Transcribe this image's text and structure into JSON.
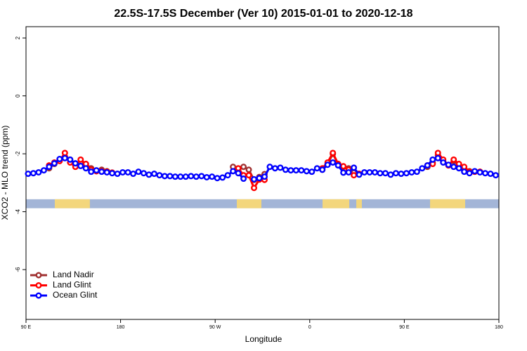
{
  "chart_data": {
    "type": "line",
    "title": "22.5S-17.5S December (Ver 10)   2015-01-01 to 2020-12-18",
    "x_label": "Longitude",
    "y_label": "XCO2 - MLO trend (ppm)",
    "xlim": [
      90,
      540
    ],
    "ylim": [
      -7.72,
      2.39
    ],
    "xticks": [
      {
        "value": 90,
        "label": "90 E"
      },
      {
        "value": 180,
        "label": "180"
      },
      {
        "value": 270,
        "label": "90 W"
      },
      {
        "value": 360,
        "label": "0"
      },
      {
        "value": 450,
        "label": "90 E"
      },
      {
        "value": 540,
        "label": "180"
      }
    ],
    "yticks": [
      -6,
      -4,
      -2,
      0,
      2
    ],
    "legend": "bottom-left",
    "surface_band": {
      "ylim": [
        -3.88,
        -3.57
      ],
      "ocean_color": "#a3b5d7",
      "land_color": "#f3d67c",
      "land": [
        [
          117.4,
          150.8
        ],
        [
          290.6,
          314
        ],
        [
          372.2,
          397.6
        ],
        [
          404.3,
          409.6
        ],
        [
          474.5,
          507.9
        ]
      ]
    },
    "x": [
      92,
      97,
      102,
      107,
      112,
      117,
      122,
      127,
      132,
      137,
      142,
      147,
      152,
      157,
      162,
      167,
      172,
      177,
      182,
      187,
      192,
      197,
      202,
      207,
      212,
      217,
      222,
      227,
      232,
      237,
      242,
      247,
      252,
      257,
      262,
      267,
      272,
      277,
      282,
      287,
      292,
      297,
      302,
      307,
      312,
      317,
      322,
      327,
      332,
      337,
      342,
      347,
      352,
      357,
      362,
      367,
      372,
      377,
      382,
      387,
      392,
      397,
      402,
      407,
      412,
      417,
      422,
      427,
      432,
      437,
      442,
      447,
      452,
      457,
      462,
      467,
      472,
      477,
      482,
      487,
      492,
      497,
      502,
      507,
      512,
      517,
      522,
      527,
      532,
      537
    ],
    "series": [
      {
        "name": "Land Nadir",
        "color": "#a03030",
        "values": [
          null,
          null,
          null,
          null,
          -2.5,
          -2.35,
          -2.2,
          -2.1,
          -2.2,
          -2.35,
          -2.3,
          -2.35,
          -2.5,
          -2.6,
          -2.55,
          -2.6,
          -2.65,
          null,
          null,
          null,
          null,
          null,
          null,
          null,
          null,
          null,
          null,
          null,
          null,
          null,
          null,
          null,
          null,
          null,
          null,
          null,
          null,
          null,
          null,
          -2.45,
          -2.55,
          -2.45,
          -2.55,
          -2.9,
          -2.8,
          -2.7,
          null,
          null,
          null,
          null,
          null,
          null,
          null,
          null,
          null,
          null,
          -2.55,
          -2.35,
          -2.0,
          -2.35,
          -2.45,
          -2.5,
          -2.65,
          -2.7,
          null,
          null,
          null,
          null,
          null,
          null,
          null,
          null,
          null,
          null,
          null,
          null,
          -2.45,
          -2.3,
          -2.05,
          -2.25,
          -2.4,
          -2.25,
          -2.4,
          -2.5,
          -2.6,
          -2.62,
          -2.62,
          null,
          null,
          null
        ]
      },
      {
        "name": "Land Glint",
        "color": "#ff0000",
        "values": [
          null,
          null,
          null,
          null,
          -2.4,
          -2.3,
          -2.25,
          -1.97,
          -2.3,
          -2.45,
          -2.2,
          -2.35,
          -2.55,
          -2.6,
          -2.6,
          -2.62,
          -2.65,
          null,
          null,
          null,
          null,
          null,
          null,
          null,
          null,
          null,
          null,
          null,
          null,
          null,
          null,
          null,
          null,
          null,
          null,
          null,
          null,
          null,
          null,
          null,
          -2.5,
          -2.74,
          -2.74,
          -3.18,
          -2.89,
          -2.9,
          null,
          null,
          null,
          null,
          null,
          null,
          null,
          null,
          null,
          null,
          -2.5,
          -2.3,
          -1.97,
          -2.35,
          -2.43,
          -2.55,
          -2.74,
          -2.69,
          null,
          null,
          null,
          null,
          null,
          null,
          null,
          null,
          null,
          null,
          null,
          null,
          -2.4,
          -2.35,
          -1.97,
          -2.2,
          -2.4,
          -2.2,
          -2.35,
          -2.45,
          -2.62,
          -2.62,
          -2.62,
          null,
          null,
          null
        ]
      },
      {
        "name": "Ocean Glint",
        "color": "#0000ff",
        "values": [
          -2.69,
          -2.67,
          -2.64,
          -2.57,
          -2.45,
          -2.33,
          -2.18,
          -2.15,
          -2.2,
          -2.33,
          -2.42,
          -2.5,
          -2.62,
          -2.57,
          -2.62,
          -2.64,
          -2.67,
          -2.69,
          -2.64,
          -2.64,
          -2.69,
          -2.62,
          -2.67,
          -2.72,
          -2.69,
          -2.74,
          -2.77,
          -2.77,
          -2.79,
          -2.79,
          -2.79,
          -2.77,
          -2.79,
          -2.77,
          -2.81,
          -2.79,
          -2.84,
          -2.82,
          -2.74,
          -2.6,
          -2.67,
          -2.86,
          null,
          -2.88,
          -2.84,
          -2.79,
          -2.45,
          -2.5,
          -2.48,
          -2.55,
          -2.57,
          -2.57,
          -2.57,
          -2.6,
          -2.62,
          -2.5,
          -2.55,
          -2.38,
          -2.3,
          -2.4,
          -2.65,
          -2.64,
          -2.48,
          -2.72,
          -2.64,
          -2.64,
          -2.64,
          -2.67,
          -2.67,
          -2.72,
          -2.67,
          -2.69,
          -2.67,
          -2.64,
          -2.62,
          -2.5,
          -2.4,
          -2.2,
          -2.15,
          -2.3,
          -2.38,
          -2.45,
          -2.5,
          -2.62,
          -2.67,
          -2.6,
          -2.64,
          -2.67,
          -2.69,
          -2.74
        ]
      }
    ]
  }
}
